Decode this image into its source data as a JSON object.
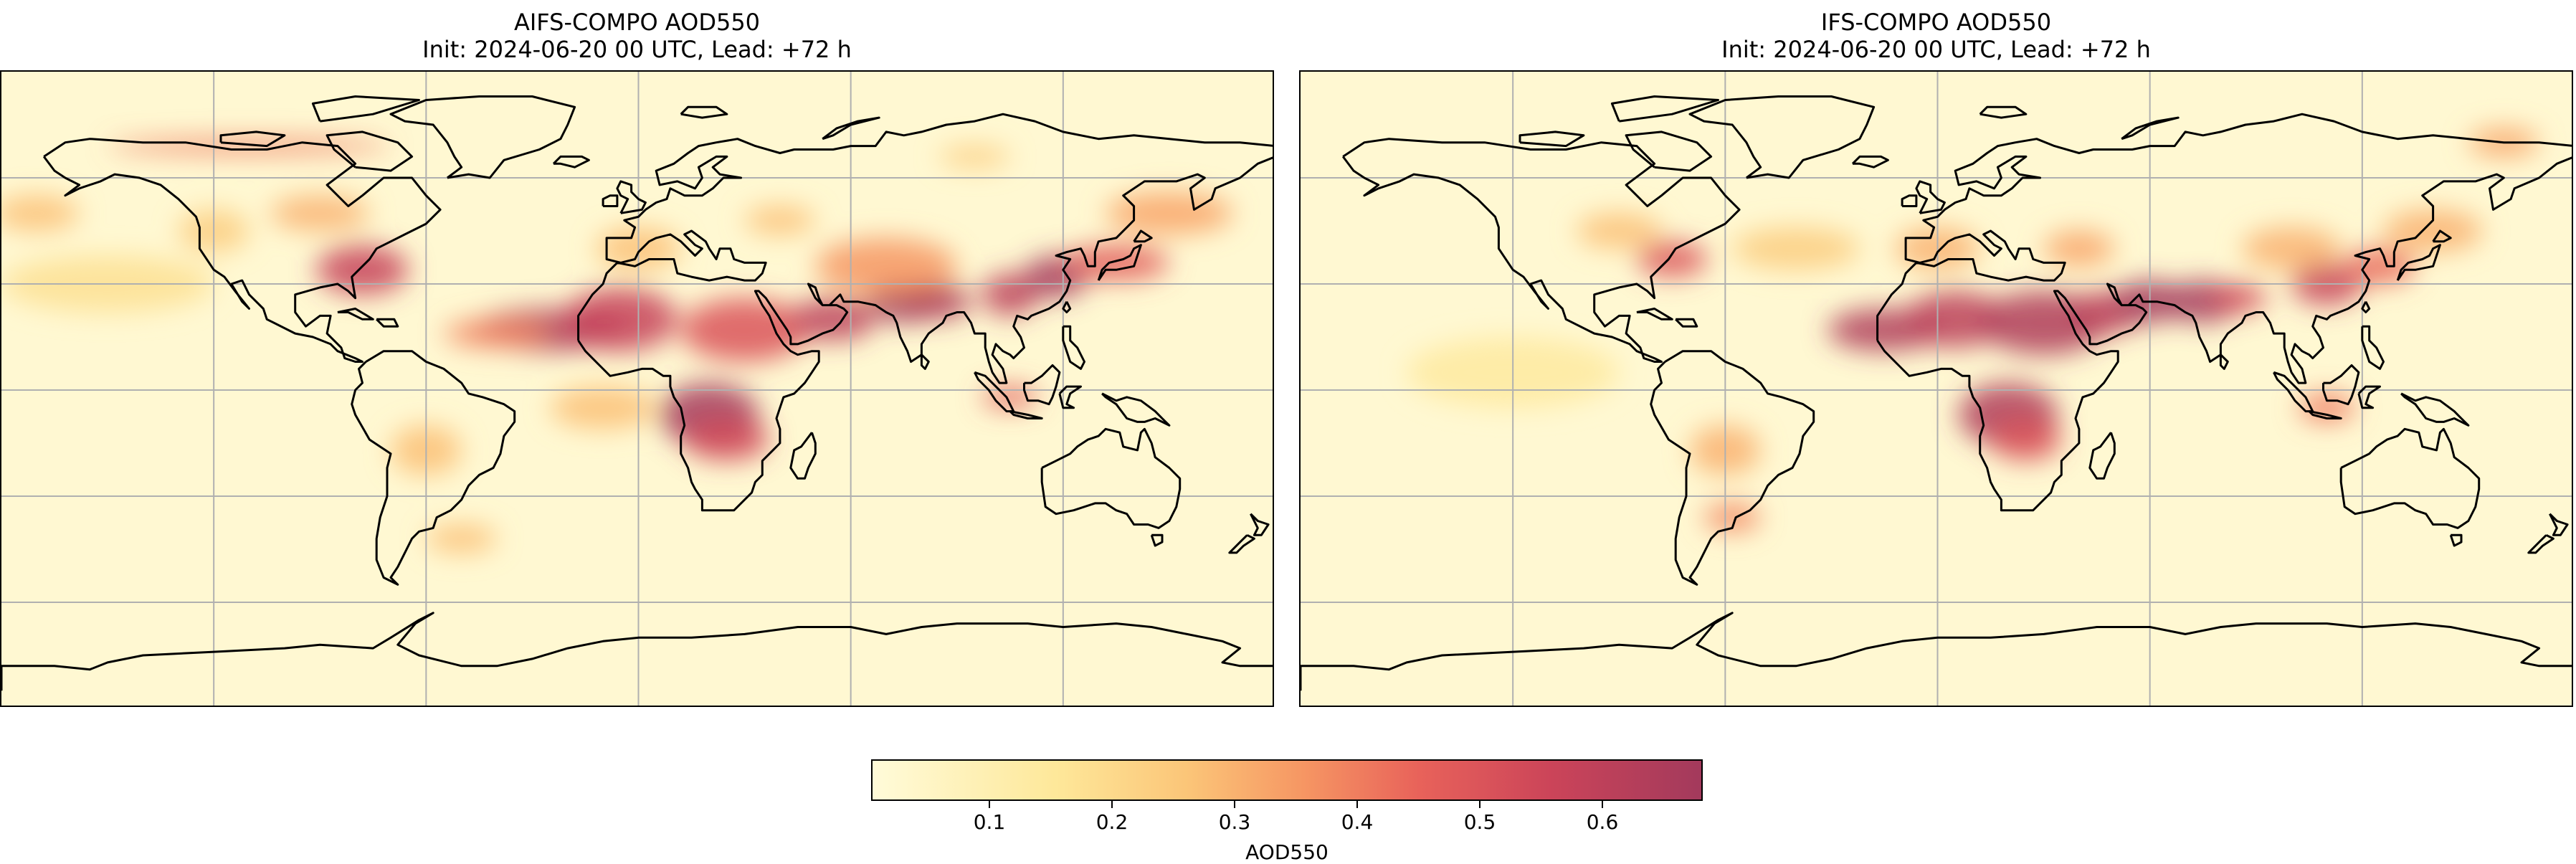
{
  "panels": [
    {
      "title_line1": "AIFS-COMPO AOD550",
      "title_line2": "Init: 2024-06-20 00 UTC, Lead: +72 h"
    },
    {
      "title_line1": "IFS-COMPO AOD550",
      "title_line2": "Init: 2024-06-20 00 UTC, Lead: +72 h"
    }
  ],
  "colorbar": {
    "label": "AOD550",
    "ticks": [
      "0.1",
      "0.2",
      "0.3",
      "0.4",
      "0.5",
      "0.6"
    ],
    "colormap": [
      "#fffbd9",
      "#fee89a",
      "#fbc578",
      "#f69663",
      "#e8625a",
      "#cb4459",
      "#a33a5c"
    ]
  },
  "colors": {
    "background": "#fff8d2",
    "coastline": "#000000",
    "gridline": "#b0b0b0"
  }
}
